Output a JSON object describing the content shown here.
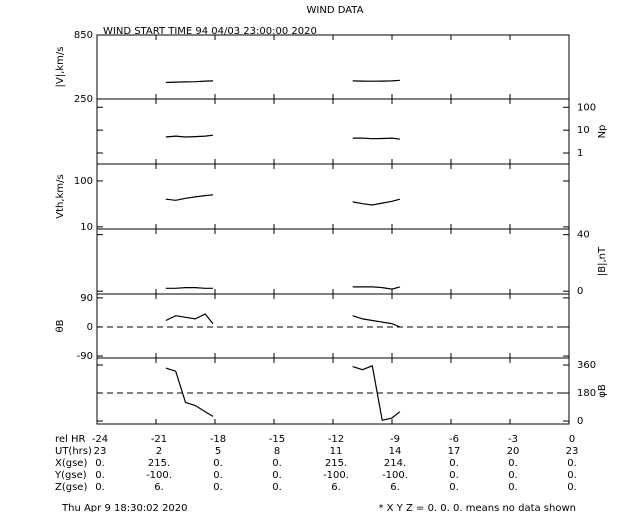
{
  "title": "WIND DATA",
  "subtitle": "WIND START TIME  94 04/03 23:00:00 2020",
  "x_axis": {
    "label": "rel HR",
    "xlim": [
      -24,
      0
    ],
    "xticks": [
      -24,
      -21,
      -18,
      -15,
      -12,
      -9,
      -6,
      -3,
      0
    ]
  },
  "table": {
    "rows": [
      {
        "label": "UT(hrs)",
        "values": [
          23,
          2,
          5,
          8,
          11,
          14,
          17,
          20,
          23
        ]
      },
      {
        "label": "X(gse)",
        "values": [
          "0.",
          "215.",
          "0.",
          "0.",
          "215.",
          "214.",
          "0.",
          "0.",
          "0."
        ]
      },
      {
        "label": "Y(gse)",
        "values": [
          "0.",
          "-100.",
          "0.",
          "0.",
          "-100.",
          "-100.",
          "0.",
          "0.",
          "0."
        ]
      },
      {
        "label": "Z(gse)",
        "values": [
          "0.",
          "6.",
          "0.",
          "0.",
          "6.",
          "6.",
          "0.",
          "0.",
          "0."
        ]
      }
    ]
  },
  "footer": {
    "left": "Thu Apr  9 18:30:02 2020",
    "right": "* X Y Z = 0. 0. 0. means no data shown"
  },
  "chart_data": [
    {
      "type": "line",
      "y_label": "|V|,km/s",
      "axis_side": "left",
      "log": false,
      "ylim": [
        250,
        850
      ],
      "yticks": [
        850,
        250
      ],
      "x": [
        -20.5,
        -20,
        -19.5,
        -19,
        -18.5,
        -18.1,
        -15,
        -11,
        -10.5,
        -10,
        -9.5,
        -9,
        -8.6
      ],
      "series": [
        {
          "color": "#000000",
          "values": [
            405,
            408,
            410,
            412,
            418,
            420,
            null,
            420,
            418,
            417,
            418,
            420,
            425
          ]
        }
      ]
    },
    {
      "type": "line",
      "y_label": "Np",
      "axis_side": "right",
      "log": true,
      "ylim": [
        0.33,
        230
      ],
      "yticks": [
        100,
        10,
        1
      ],
      "x": [
        -20.5,
        -20,
        -19.5,
        -19,
        -18.5,
        -18.1,
        -15,
        -11,
        -10.5,
        -10,
        -9.5,
        -9,
        -8.6
      ],
      "series": [
        {
          "color": "#000000",
          "values": [
            5,
            5.5,
            5,
            5.2,
            5.5,
            6,
            null,
            4.5,
            4.5,
            4.2,
            4.3,
            4.5,
            4
          ]
        }
      ]
    },
    {
      "type": "line",
      "y_label": "Vth,km/s",
      "axis_side": "left",
      "log": true,
      "ylim": [
        9,
        234
      ],
      "yticks": [
        100,
        10
      ],
      "x": [
        -20.5,
        -20,
        -19.5,
        -19,
        -18.5,
        -18.1,
        -15,
        -11,
        -10.5,
        -10,
        -9.5,
        -9,
        -8.6
      ],
      "series": [
        {
          "color": "#000000",
          "values": [
            40,
            38,
            42,
            45,
            48,
            50,
            null,
            35,
            32,
            30,
            33,
            36,
            40
          ]
        }
      ]
    },
    {
      "type": "line",
      "y_label": "|B|,nT",
      "axis_side": "right",
      "log": false,
      "ylim": [
        -2,
        44
      ],
      "yticks": [
        40,
        0
      ],
      "x": [
        -20.5,
        -20,
        -19.5,
        -19,
        -18.5,
        -18.1,
        -15,
        -11,
        -10.5,
        -10,
        -9.5,
        -9,
        -8.6
      ],
      "series": [
        {
          "color": "#000000",
          "values": [
            2,
            2,
            2.5,
            2.5,
            2,
            2,
            null,
            3,
            3,
            3,
            2.5,
            1.5,
            3
          ]
        }
      ]
    },
    {
      "type": "line",
      "y_label": "θB",
      "axis_side": "left",
      "log": false,
      "ylim": [
        -96,
        102
      ],
      "yticks": [
        90,
        0,
        -90
      ],
      "hline": 0,
      "x": [
        -20.5,
        -20,
        -19.5,
        -19,
        -18.5,
        -18.1,
        -15,
        -11,
        -10.5,
        -10,
        -9.5,
        -9,
        -8.6
      ],
      "series": [
        {
          "color": "#000000",
          "values": [
            20,
            35,
            30,
            25,
            40,
            10,
            null,
            35,
            25,
            20,
            15,
            10,
            0
          ]
        }
      ]
    },
    {
      "type": "line",
      "y_label": "φB",
      "axis_side": "right",
      "log": false,
      "ylim": [
        -19,
        405
      ],
      "yticks": [
        360,
        180,
        0
      ],
      "hline": 180,
      "x": [
        -20.5,
        -20,
        -19.5,
        -19,
        -18.5,
        -18.1,
        -15,
        -11,
        -10.5,
        -10,
        -9.5,
        -9,
        -8.6
      ],
      "series": [
        {
          "color": "#000000",
          "values": [
            340,
            320,
            120,
            100,
            60,
            30,
            null,
            350,
            330,
            355,
            5,
            20,
            60
          ]
        }
      ]
    }
  ]
}
